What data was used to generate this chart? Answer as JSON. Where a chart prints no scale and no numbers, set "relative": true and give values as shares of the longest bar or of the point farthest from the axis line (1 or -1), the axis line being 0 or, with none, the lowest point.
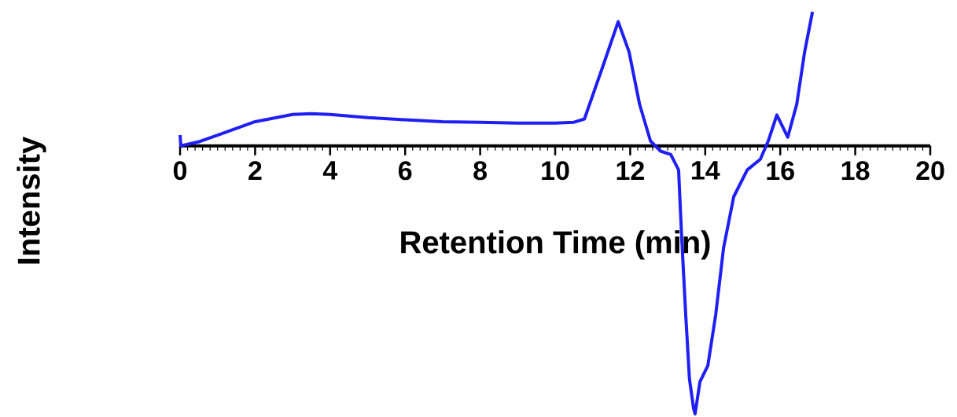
{
  "chart_data": {
    "type": "line",
    "xlabel": "Retention Time (min)",
    "ylabel": "Intensity",
    "relative": true,
    "color": "#1f1ff5",
    "x": [
      0,
      0.02,
      0.5,
      1,
      2,
      3,
      3.5,
      4,
      5,
      6,
      7,
      8,
      9,
      10,
      10.5,
      10.78,
      11.28,
      11.68,
      11.97,
      12.25,
      12.54,
      12.81,
      13.08,
      13.29,
      13.37,
      13.48,
      13.58,
      13.69,
      13.73,
      13.86,
      14.07,
      14.28,
      14.49,
      14.76,
      15.12,
      15.47,
      15.68,
      15.91,
      16.2,
      16.44,
      16.65,
      16.86
    ],
    "values": [
      0.04,
      0.0,
      0.015,
      0.04,
      0.09,
      0.117,
      0.12,
      0.117,
      0.105,
      0.097,
      0.09,
      0.088,
      0.085,
      0.085,
      0.088,
      0.1,
      0.3,
      0.463,
      0.35,
      0.155,
      0.018,
      -0.02,
      -0.032,
      -0.09,
      -0.334,
      -0.63,
      -0.87,
      -0.98,
      -1,
      -0.88,
      -0.82,
      -0.63,
      -0.38,
      -0.19,
      -0.09,
      -0.05,
      0.018,
      0.115,
      0.032,
      0.155,
      0.35,
      0.5
    ],
    "xlim": [
      0,
      20
    ],
    "xticks": [
      0,
      2,
      4,
      6,
      8,
      10,
      12,
      14,
      16,
      18,
      20
    ]
  }
}
